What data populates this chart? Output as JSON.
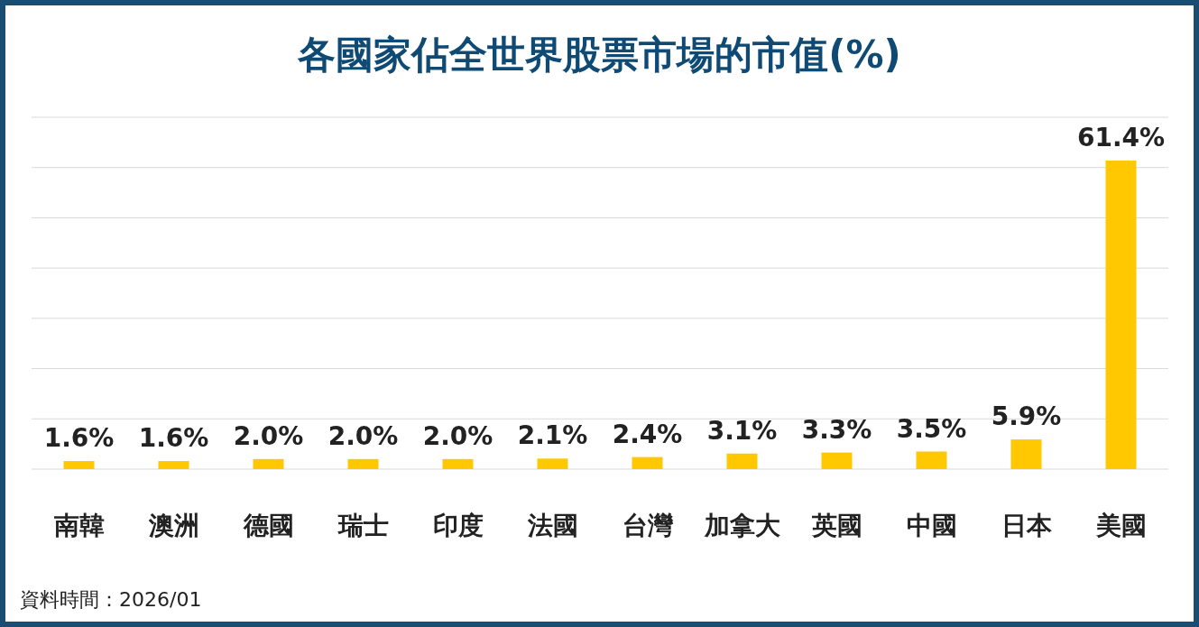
{
  "chart_data": {
    "type": "bar",
    "title": "各國家佔全世界股票市場的市值(%)",
    "categories": [
      "南韓",
      "澳洲",
      "德國",
      "瑞士",
      "印度",
      "法國",
      "台灣",
      "加拿大",
      "英國",
      "中國",
      "日本",
      "美國"
    ],
    "values": [
      1.6,
      1.6,
      2.0,
      2.0,
      2.0,
      2.1,
      2.4,
      3.1,
      3.3,
      3.5,
      5.9,
      61.4
    ],
    "value_labels": [
      "1.6%",
      "1.6%",
      "2.0%",
      "2.0%",
      "2.0%",
      "2.1%",
      "2.4%",
      "3.1%",
      "3.3%",
      "3.5%",
      "5.9%",
      "61.4%"
    ],
    "color": "#ffc800",
    "ylim": [
      0,
      70
    ],
    "yticks": [
      {
        "value": 0,
        "label": null
      },
      {
        "value": 10,
        "label": null
      },
      {
        "value": 20,
        "label": null
      },
      {
        "value": 30,
        "label": null
      },
      {
        "value": 40,
        "label": null
      },
      {
        "value": 50,
        "label": null
      },
      {
        "value": 60,
        "label": null
      },
      {
        "value": 70,
        "label": null
      }
    ],
    "grid": "y",
    "tick_labels": "x",
    "annotations": [
      "資料時間：2026/01"
    ]
  }
}
